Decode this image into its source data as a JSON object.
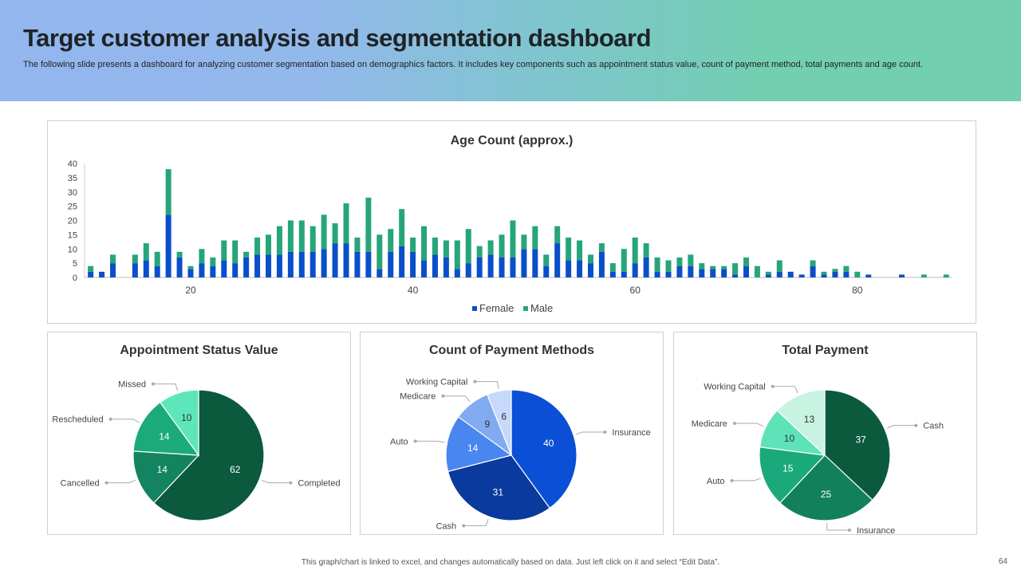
{
  "header": {
    "title": "Target customer analysis and segmentation dashboard",
    "subtitle": "The following slide presents a dashboard for analyzing customer segmentation based on demographics factors. It includes key components such as appointment status value, count of payment method, total payments and age count."
  },
  "footer": {
    "note": "This graph/chart is linked to excel, and changes automatically based on data. Just left click on it and select “Edit Data”.",
    "page_number": "64"
  },
  "chart_data": [
    {
      "type": "bar",
      "stacked": true,
      "title": "Age Count (approx.)",
      "xlabel": "",
      "ylabel": "",
      "ylim": [
        0,
        40
      ],
      "yticks": [
        0,
        5,
        10,
        15,
        20,
        25,
        30,
        35,
        40
      ],
      "xticks": [
        20,
        40,
        60,
        80
      ],
      "legend_position": "bottom",
      "x": [
        11,
        12,
        13,
        15,
        16,
        17,
        18,
        19,
        20,
        21,
        22,
        23,
        24,
        25,
        26,
        27,
        28,
        29,
        30,
        31,
        32,
        33,
        34,
        35,
        36,
        37,
        38,
        39,
        40,
        41,
        42,
        43,
        44,
        45,
        46,
        47,
        48,
        49,
        50,
        51,
        52,
        53,
        54,
        55,
        56,
        57,
        58,
        59,
        60,
        61,
        62,
        63,
        64,
        65,
        66,
        67,
        68,
        69,
        70,
        71,
        72,
        73,
        74,
        75,
        76,
        77,
        78,
        79,
        80,
        81,
        84,
        86,
        88
      ],
      "series": [
        {
          "name": "Female",
          "color": "#0a4fc9",
          "values": [
            2,
            2,
            5,
            5,
            6,
            4,
            22,
            7,
            3,
            5,
            4,
            6,
            5,
            7,
            8,
            8,
            8,
            9,
            9,
            9,
            10,
            12,
            12,
            9,
            9,
            3,
            9,
            11,
            9,
            6,
            8,
            7,
            3,
            5,
            7,
            8,
            7,
            7,
            10,
            10,
            4,
            12,
            6,
            6,
            5,
            9,
            2,
            2,
            5,
            7,
            2,
            2,
            4,
            4,
            3,
            3,
            3,
            1,
            4,
            0,
            1,
            2,
            2,
            1,
            4,
            1,
            2,
            2,
            0,
            1,
            1,
            0,
            0
          ]
        },
        {
          "name": "Male",
          "color": "#27a57a",
          "values": [
            2,
            0,
            3,
            3,
            6,
            5,
            16,
            2,
            1,
            5,
            3,
            7,
            8,
            2,
            6,
            7,
            10,
            11,
            11,
            9,
            12,
            7,
            14,
            5,
            19,
            12,
            8,
            13,
            5,
            12,
            6,
            6,
            10,
            12,
            4,
            5,
            8,
            13,
            5,
            8,
            4,
            6,
            8,
            7,
            3,
            3,
            3,
            8,
            9,
            5,
            5,
            4,
            3,
            4,
            2,
            1,
            1,
            4,
            3,
            4,
            1,
            4,
            0,
            0,
            2,
            1,
            1,
            2,
            2,
            0,
            0,
            1,
            1
          ]
        }
      ]
    },
    {
      "type": "pie",
      "title": "Appointment Status Value",
      "slices": [
        {
          "label": "Completed",
          "value": 62,
          "color": "#0b5a3e",
          "text_color": "#ffffff"
        },
        {
          "label": "Cancelled",
          "value": 14,
          "color": "#13845f",
          "text_color": "#ffffff"
        },
        {
          "label": "Rescheduled",
          "value": 14,
          "color": "#1bab7b",
          "text_color": "#ffffff"
        },
        {
          "label": "Missed",
          "value": 10,
          "color": "#5ee6bb",
          "text_color": "#333333"
        }
      ]
    },
    {
      "type": "pie",
      "title": "Count of Payment Methods",
      "slices": [
        {
          "label": "Insurance",
          "value": 40,
          "color": "#0a4fd6",
          "text_color": "#ffffff"
        },
        {
          "label": "Cash",
          "value": 31,
          "color": "#0a3a9e",
          "text_color": "#ffffff"
        },
        {
          "label": "Auto",
          "value": 14,
          "color": "#4a86ef",
          "text_color": "#ffffff"
        },
        {
          "label": "Medicare",
          "value": 9,
          "color": "#82aaf0",
          "text_color": "#333333"
        },
        {
          "label": "Working Capital",
          "value": 6,
          "color": "#c6d8fb",
          "text_color": "#333333"
        }
      ]
    },
    {
      "type": "pie",
      "title": "Total Payment",
      "slices": [
        {
          "label": "Cash",
          "value": 37,
          "color": "#0b5a3e",
          "text_color": "#ffffff"
        },
        {
          "label": "Insurance",
          "value": 25,
          "color": "#13805c",
          "text_color": "#ffffff"
        },
        {
          "label": "Auto",
          "value": 15,
          "color": "#1aa97a",
          "text_color": "#ffffff"
        },
        {
          "label": "Medicare",
          "value": 10,
          "color": "#5ee3b8",
          "text_color": "#333333"
        },
        {
          "label": "Working Capital",
          "value": 13,
          "color": "#c8f3e2",
          "text_color": "#333333"
        }
      ]
    }
  ]
}
